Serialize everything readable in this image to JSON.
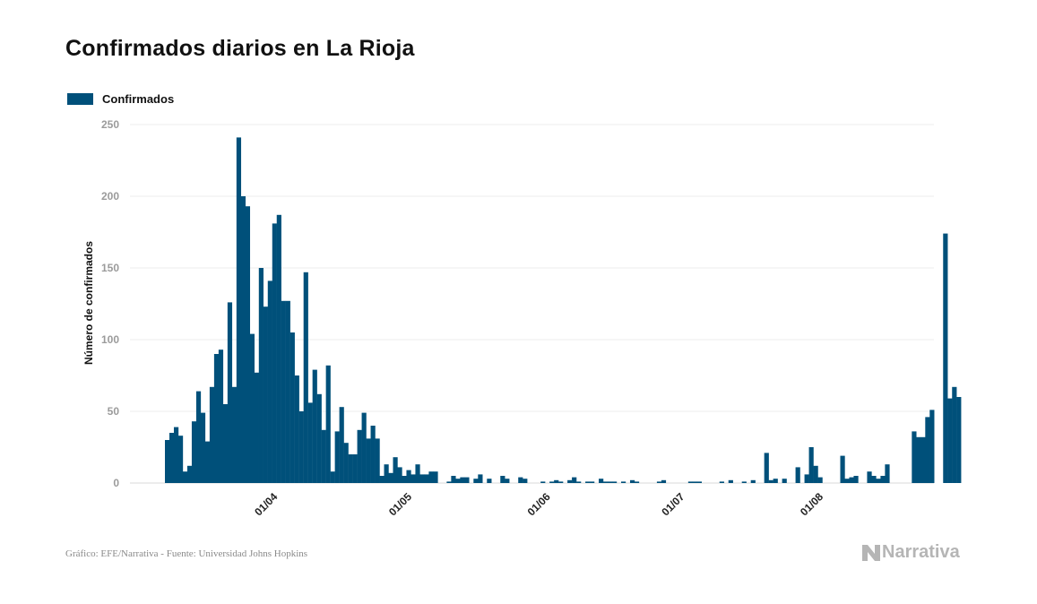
{
  "title": "Confirmados diarios en La Rioja",
  "legend": {
    "label": "Confirmados",
    "color": "#00507a"
  },
  "source": "Gráfico: EFE/Narrativa - Fuente: Universidad Johns Hopkins",
  "brand": {
    "name": "Narrativa",
    "icon": "narrativa-logo-icon"
  },
  "chart_data": {
    "type": "bar",
    "title": "Confirmados diarios en La Rioja",
    "xlabel": "",
    "ylabel": "Número de confirmados",
    "ylim": [
      0,
      250
    ],
    "yticks": [
      0,
      50,
      100,
      150,
      200,
      250
    ],
    "xtick_labels": [
      "01/04",
      "01/05",
      "01/06",
      "01/07",
      "01/08"
    ],
    "xtick_dates": [
      "2020-04-01",
      "2020-05-01",
      "2020-06-01",
      "2020-07-01",
      "2020-08-01"
    ],
    "start_date": "2020-03-08",
    "grid": true,
    "legend_position": "top-left",
    "series": [
      {
        "name": "Confirmados",
        "color": "#00507a",
        "values": [
          30,
          35,
          39,
          33,
          8,
          12,
          43,
          64,
          49,
          29,
          67,
          90,
          93,
          55,
          126,
          67,
          241,
          200,
          193,
          104,
          77,
          150,
          123,
          141,
          181,
          187,
          127,
          127,
          105,
          75,
          50,
          147,
          56,
          79,
          62,
          37,
          82,
          8,
          36,
          53,
          28,
          20,
          20,
          37,
          49,
          31,
          40,
          31,
          5,
          13,
          7,
          18,
          11,
          5,
          9,
          6,
          13,
          6,
          6,
          8,
          8,
          0,
          0,
          1,
          5,
          3,
          4,
          4,
          0,
          3,
          6,
          0,
          3,
          0,
          0,
          5,
          3,
          0,
          0,
          4,
          3,
          0,
          0,
          0,
          1,
          0,
          1,
          2,
          1,
          0,
          2,
          4,
          1,
          0,
          1,
          1,
          0,
          3,
          1,
          1,
          1,
          0,
          1,
          0,
          2,
          1,
          0,
          0,
          0,
          0,
          1,
          2,
          0,
          0,
          0,
          0,
          0,
          1,
          1,
          1,
          0,
          0,
          0,
          0,
          1,
          0,
          2,
          0,
          0,
          1,
          0,
          2,
          0,
          0,
          21,
          2,
          3,
          0,
          3,
          0,
          0,
          11,
          0,
          6,
          25,
          12,
          4,
          0,
          0,
          0,
          0,
          19,
          3,
          4,
          5,
          0,
          0,
          8,
          5,
          3,
          5,
          13,
          0,
          0,
          0,
          0,
          0,
          36,
          32,
          32,
          46,
          51,
          0,
          0,
          174,
          59,
          67,
          60
        ]
      }
    ]
  }
}
